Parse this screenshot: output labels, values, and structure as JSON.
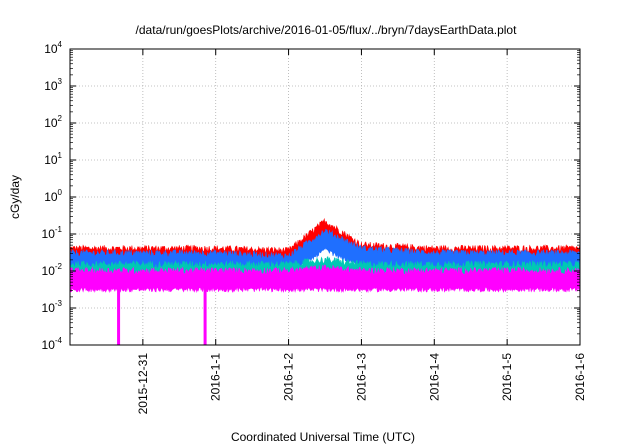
{
  "chart_data": {
    "type": "line",
    "title": "/data/run/goesPlots/archive/2016-01-05/flux/../bryn/7daysEarthData.plot",
    "xlabel": "Coordinated Universal Time (UTC)",
    "ylabel": "cGy/day",
    "y_scale": "log",
    "ylim": [
      0.0001,
      10000
    ],
    "y_ticks": [
      {
        "base": "10",
        "exp": "-4",
        "value": 0.0001
      },
      {
        "base": "10",
        "exp": "-3",
        "value": 0.001
      },
      {
        "base": "10",
        "exp": "-2",
        "value": 0.01
      },
      {
        "base": "10",
        "exp": "-1",
        "value": 0.1
      },
      {
        "base": "10",
        "exp": "0",
        "value": 1
      },
      {
        "base": "10",
        "exp": "1",
        "value": 10
      },
      {
        "base": "10",
        "exp": "2",
        "value": 100
      },
      {
        "base": "10",
        "exp": "3",
        "value": 1000
      },
      {
        "base": "10",
        "exp": "4",
        "value": 10000
      }
    ],
    "xlim": [
      "2015-12-30T00:00",
      "2016-01-06T00:00"
    ],
    "x_ticks": [
      "2015-12-31",
      "2016-1-1",
      "2016-1-2",
      "2016-1-3",
      "2016-1-4",
      "2016-1-5",
      "2016-1-6"
    ],
    "grid": true,
    "series": [
      {
        "color": "#ff0000",
        "x": [
          "2015-12-30",
          "2015-12-31",
          "2016-01-01",
          "2016-01-02",
          "2016-01-02T12:00",
          "2016-01-03",
          "2016-01-04",
          "2016-01-05",
          "2016-01-06"
        ],
        "values": [
          0.04,
          0.04,
          0.04,
          0.035,
          0.22,
          0.05,
          0.04,
          0.04,
          0.04
        ]
      },
      {
        "color": "#1f6fff",
        "x": [
          "2015-12-30",
          "2015-12-31",
          "2016-01-01",
          "2016-01-02",
          "2016-01-02T12:00",
          "2016-01-03",
          "2016-01-04",
          "2016-01-05",
          "2016-01-06"
        ],
        "values": [
          0.03,
          0.03,
          0.03,
          0.025,
          0.12,
          0.04,
          0.03,
          0.03,
          0.03
        ]
      },
      {
        "color": "#00c8b4",
        "x": [
          "2015-12-30",
          "2015-12-31",
          "2016-01-01",
          "2016-01-02",
          "2016-01-02T12:00",
          "2016-01-03",
          "2016-01-04",
          "2016-01-05",
          "2016-01-06"
        ],
        "values": [
          0.015,
          0.015,
          0.015,
          0.015,
          0.02,
          0.015,
          0.015,
          0.015,
          0.015
        ]
      },
      {
        "color": "#ff00ff",
        "x": [
          "2015-12-30",
          "2015-12-31",
          "2016-01-01",
          "2016-01-02",
          "2016-01-02T12:00",
          "2016-01-03",
          "2016-01-04",
          "2016-01-05",
          "2016-01-06"
        ],
        "values": [
          0.01,
          0.01,
          0.01,
          0.01,
          0.012,
          0.01,
          0.01,
          0.01,
          0.01
        ],
        "min_values": [
          0.003,
          0.003,
          0.003,
          0.003,
          0.003,
          0.003,
          0.003,
          0.003,
          0.003
        ],
        "dropouts": [
          "2015-12-30T16:00",
          "2015-12-31T20:30"
        ]
      }
    ]
  }
}
